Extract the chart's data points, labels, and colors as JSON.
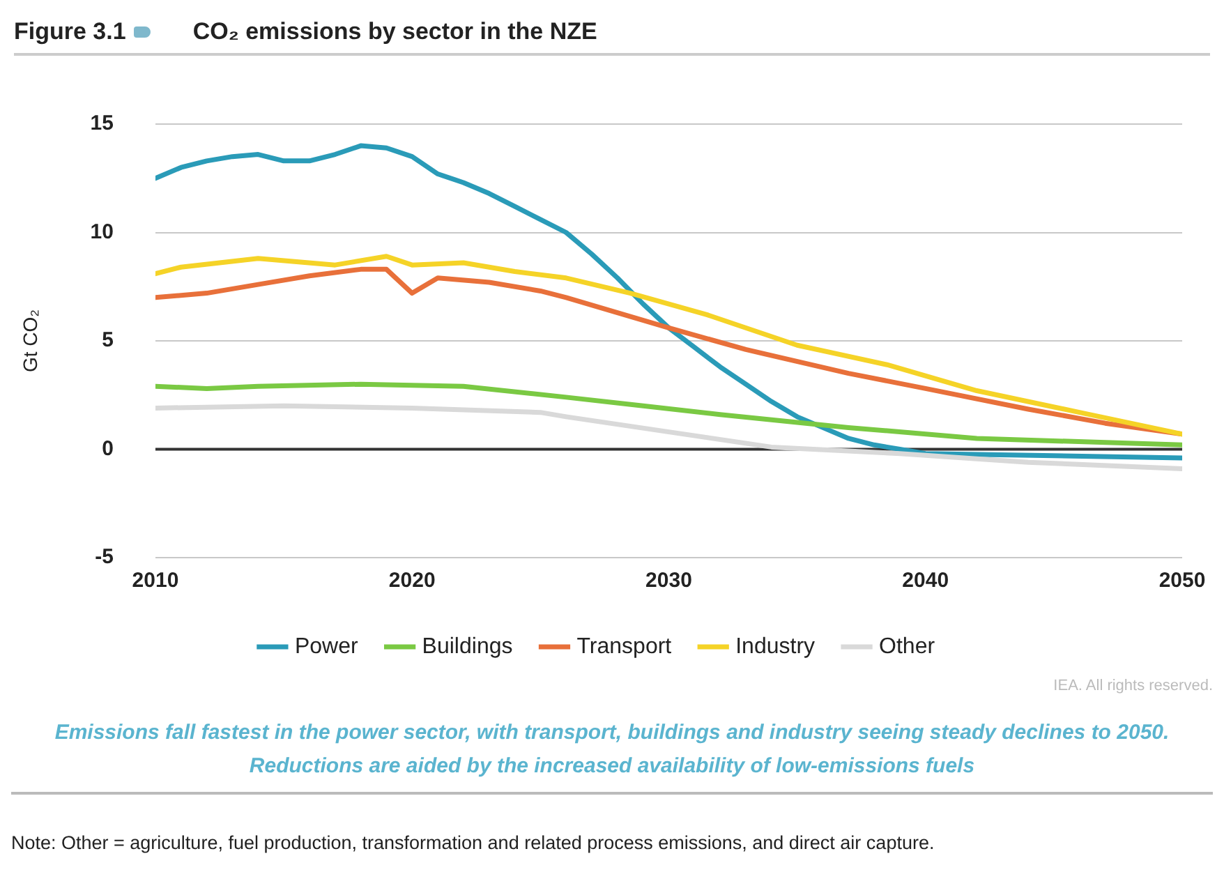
{
  "chart_data": {
    "type": "line",
    "title": "Figure 3.1",
    "subtitle": "CO₂ emissions by sector in the NZE",
    "ylabel": "Gt CO₂",
    "xlim": [
      2010,
      2050
    ],
    "xticks": [
      2010,
      2020,
      2030,
      2040,
      2050
    ],
    "ylim": [
      -5,
      15
    ],
    "yticks": [
      -5,
      0,
      5,
      10,
      15
    ],
    "grid": "y",
    "legend": "bottom",
    "marker": "none",
    "line_style": "solid",
    "ref_lines": [
      {
        "axis": "y",
        "value": 0,
        "color": "#333333"
      }
    ],
    "series": [
      {
        "name": "Power",
        "color": "#2a9bb8",
        "x": [
          2010,
          2011,
          2012,
          2013,
          2014,
          2015,
          2016,
          2017,
          2018,
          2019,
          2020,
          2021,
          2022,
          2023,
          2024,
          2025,
          2026,
          2027,
          2028,
          2029,
          2030,
          2031,
          2032,
          2033,
          2034,
          2035,
          2036,
          2037,
          2038,
          2039,
          2040,
          2045,
          2050
        ],
        "values": [
          12.5,
          13.0,
          13.3,
          13.5,
          13.6,
          13.3,
          13.3,
          13.6,
          14.0,
          13.9,
          13.5,
          12.7,
          12.3,
          11.8,
          11.2,
          10.6,
          10.0,
          9.0,
          7.9,
          6.7,
          5.6,
          4.7,
          3.8,
          3.0,
          2.2,
          1.5,
          1.0,
          0.5,
          0.2,
          0,
          -0.2,
          -0.3,
          -0.4
        ]
      },
      {
        "name": "Buildings",
        "color": "#7ac943",
        "x": [
          2010,
          2012,
          2014,
          2018,
          2022,
          2026,
          2029,
          2032,
          2037,
          2042,
          2050
        ],
        "values": [
          2.9,
          2.8,
          2.9,
          3.0,
          2.9,
          2.4,
          2.0,
          1.6,
          1.0,
          0.5,
          0.2
        ]
      },
      {
        "name": "Transport",
        "color": "#e8703a",
        "x": [
          2010,
          2012,
          2014,
          2016,
          2018,
          2019,
          2020,
          2021,
          2023,
          2025,
          2026,
          2030,
          2033,
          2037,
          2040,
          2044,
          2047,
          2050
        ],
        "values": [
          7.0,
          7.2,
          7.6,
          8.0,
          8.3,
          8.3,
          7.2,
          7.9,
          7.7,
          7.3,
          7.0,
          5.6,
          4.6,
          3.5,
          2.8,
          1.85,
          1.2,
          0.7
        ]
      },
      {
        "name": "Industry",
        "color": "#f5d327",
        "x": [
          2010,
          2011,
          2014,
          2017,
          2019,
          2020,
          2022,
          2024,
          2026,
          2028.5,
          2031.5,
          2035,
          2038.5,
          2042,
          2046,
          2050
        ],
        "values": [
          8.1,
          8.4,
          8.8,
          8.5,
          8.9,
          8.5,
          8.6,
          8.2,
          7.9,
          7.2,
          6.2,
          4.8,
          3.9,
          2.7,
          1.7,
          0.7
        ]
      },
      {
        "name": "Other",
        "color": "#d9d9d9",
        "x": [
          2010,
          2015,
          2020,
          2025,
          2026,
          2030,
          2034,
          2039,
          2044,
          2050
        ],
        "values": [
          1.9,
          2.0,
          1.9,
          1.7,
          1.5,
          0.8,
          0.1,
          -0.2,
          -0.6,
          -0.9
        ]
      }
    ],
    "annotations": [
      "IEA. All rights reserved.",
      "Emissions fall fastest in the power sector, with transport, buildings and industry seeing steady declines to 2050. Reductions are aided by the increased availability of low-emissions fuels",
      "Note: Other = agriculture, fuel production, transformation and related process emissions, and direct air capture."
    ]
  }
}
